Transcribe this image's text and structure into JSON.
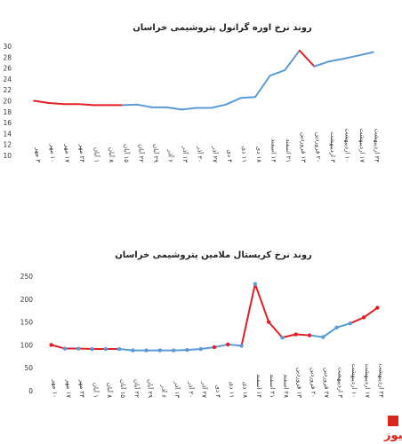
{
  "colors": {
    "blue": "#5b9bd5",
    "red": "#e31e24",
    "marker": "#5b9bd5",
    "markerRed": "#e31e24",
    "brand": "#d9261c"
  },
  "watermark": {
    "text": "بورس نیوز",
    "logo_icon": "bourse-news-logo-icon"
  },
  "chart_data": [
    {
      "type": "line",
      "title": "روند نرخ اوره گرانول پتروشیمی خراسان",
      "ylim": [
        10,
        30
      ],
      "yticks": [
        10,
        12,
        14,
        16,
        18,
        20,
        22,
        24,
        26,
        28,
        30
      ],
      "categories": [
        "۳ مهر",
        "۱۰ مهر",
        "۱۷ مهر",
        "۲۴ مهر",
        "۱ آبان",
        "۸ آبان",
        "۱۵ آبان",
        "۲۲ آبان",
        "۲۹ آبان",
        "۶ آذر",
        "۱۳ آذر",
        "۲۰ آذر",
        "۲۷ آذر",
        "۴ دی",
        "۱۱ دی",
        "۱۸ دی",
        "۱۴ اسفند",
        "۲۱ اسفند",
        "۱۳ فروردین",
        "۲۰ فروردین",
        "۳ اردیبهشت",
        "۱۰ اردیبهشت",
        "۱۷ اردیبهشت",
        "۲۴ اردیبهشت"
      ],
      "values": [
        20,
        19.6,
        19.4,
        19.4,
        19.2,
        19.2,
        19.2,
        19.3,
        18.8,
        18.8,
        18.4,
        18.7,
        18.7,
        19.3,
        20.5,
        20.7,
        24.6,
        25.6,
        29.2,
        26.3,
        27.2,
        27.7,
        28.3,
        28.9
      ],
      "red_segments": [
        [
          0,
          6
        ],
        [
          18,
          19
        ]
      ],
      "grid": false,
      "markers": false
    },
    {
      "type": "line",
      "title": "روند نرخ کریستال ملامین پتروشیمی خراسان",
      "ylim": [
        0,
        250
      ],
      "yticks": [
        0,
        50,
        100,
        150,
        200,
        250
      ],
      "categories": [
        "۱۰ مهر",
        "۱۷ مهر",
        "۲۴ مهر",
        "۱ آبان",
        "۸ آبان",
        "۱۵ آبان",
        "۲۲ آبان",
        "۲۹ آبان",
        "۶ آذر",
        "۱۳ آذر",
        "۲۰ آذر",
        "۲۷ آذر",
        "۴ دی",
        "۱۱ دی",
        "۱۸ دی",
        "۱۴ اسفند",
        "۲۱ اسفند",
        "۲۸ اسفند",
        "۱۳ فروردین",
        "۲۰ فروردین",
        "۲۷ فروردین",
        "۳ اردیبهشت",
        "۱۰ اردیبهشت",
        "۱۷ اردیبهشت",
        "۲۴ اردیبهشت"
      ],
      "values": [
        100,
        92,
        92,
        91,
        91,
        91,
        88,
        88,
        88,
        88,
        89,
        91,
        95,
        101,
        98,
        233,
        150,
        116,
        123,
        121,
        117,
        138,
        147,
        160,
        181
      ],
      "red_segments": [
        [
          0,
          5
        ],
        [
          14,
          19
        ],
        [
          22,
          24
        ]
      ],
      "red_markers": [
        0,
        12,
        13,
        16,
        18,
        19,
        23,
        24
      ],
      "grid": false,
      "markers": true
    }
  ]
}
